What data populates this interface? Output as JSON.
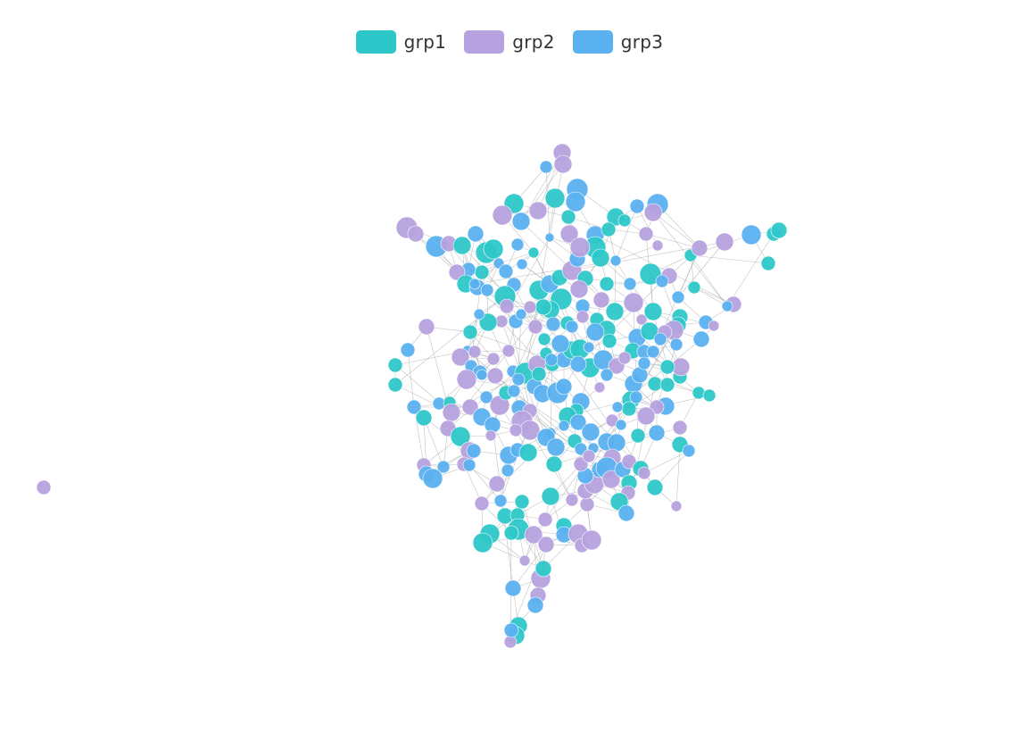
{
  "legend": [
    {
      "name": "grp1",
      "color": "#2ec7c9"
    },
    {
      "name": "grp2",
      "color": "#b6a2de"
    },
    {
      "name": "grp3",
      "color": "#5ab1ef"
    }
  ],
  "chart_data": {
    "type": "graph",
    "title": "",
    "categories": [
      "grp1",
      "grp2",
      "grp3"
    ],
    "legend_position": "top-center",
    "nodes": [
      {
        "id": "n0",
        "category": "grp2",
        "size": 3
      }
    ],
    "edges": []
  }
}
